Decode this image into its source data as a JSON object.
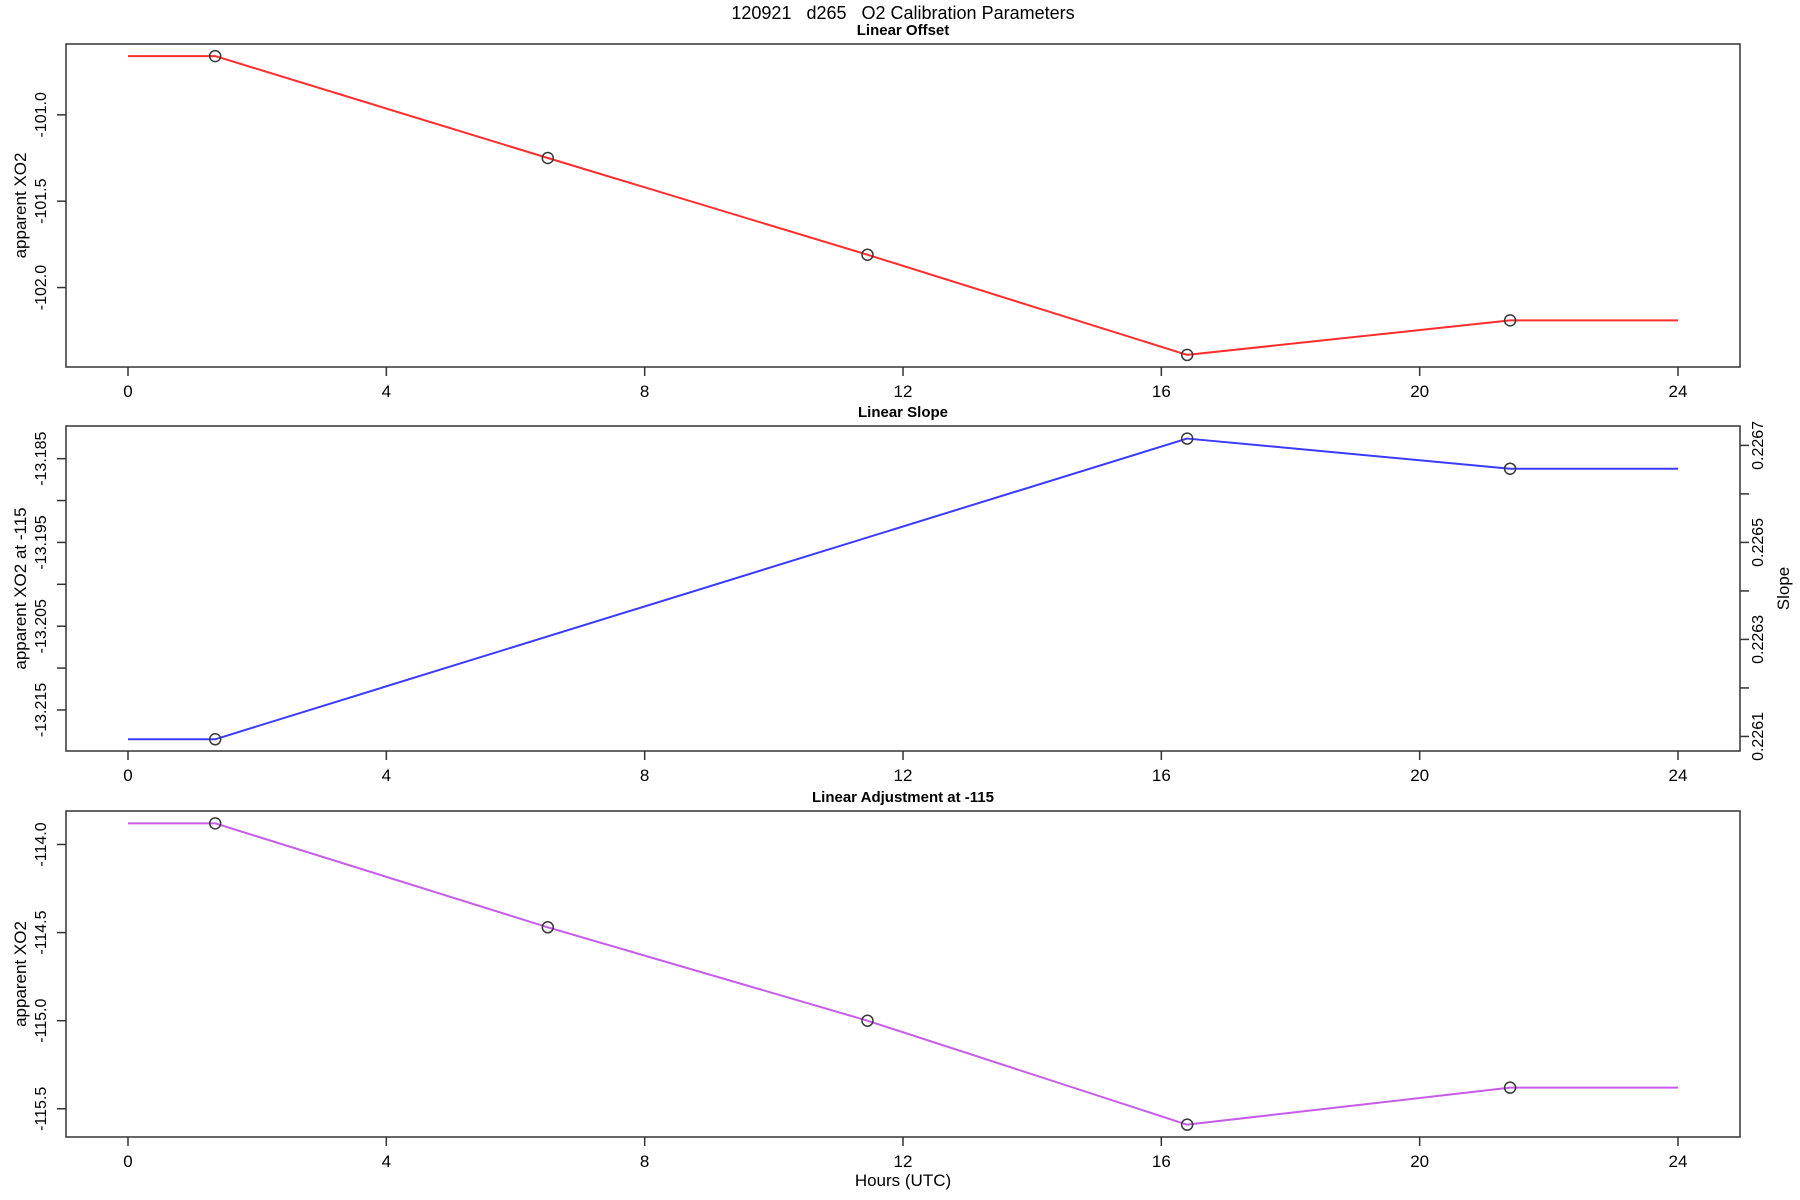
{
  "page_title": "120921   d265   O2 Calibration Parameters",
  "xlabel": "Hours (UTC)",
  "marker_color": "#3a3a3a",
  "axis_color": "#333333",
  "chart_data": [
    {
      "type": "line",
      "title": "Linear Offset",
      "ylabel": "apparent XO2",
      "line_color": "#ff2d2d",
      "x": [
        1.35,
        6.5,
        11.45,
        16.4,
        21.4
      ],
      "y": [
        -100.66,
        -101.25,
        -101.81,
        -102.39,
        -102.19
      ],
      "extend_flat_to": [
        0,
        24
      ],
      "xlim": [
        -0.96,
        24.96
      ],
      "ylim": [
        -102.46,
        -100.59
      ],
      "xticks": [
        0,
        4,
        8,
        12,
        16,
        20,
        24
      ],
      "yticks": [
        {
          "v": -101.0,
          "label": "-101.0"
        },
        {
          "v": -101.5,
          "label": "-101.5"
        },
        {
          "v": -102.0,
          "label": "-102.0"
        }
      ],
      "grid": false,
      "legend": null
    },
    {
      "type": "line",
      "title": "Linear Slope",
      "ylabel": "apparent XO2 at -115",
      "ylabel_right": "Slope",
      "line_color": "#3b3bff",
      "x": [
        1.35,
        16.4,
        21.4
      ],
      "y": [
        -13.2185,
        -13.1826,
        -13.1862
      ],
      "y_right": [
        0.2261,
        0.22671,
        0.22665
      ],
      "extend_flat_to": [
        0,
        24
      ],
      "xlim": [
        -0.96,
        24.96
      ],
      "ylim": [
        -13.2199,
        -13.1811
      ],
      "ylim_right": [
        0.22607,
        0.22674
      ],
      "xticks": [
        0,
        4,
        8,
        12,
        16,
        20,
        24
      ],
      "yticks": [
        {
          "v": -13.185,
          "label": "-13.185"
        },
        {
          "v": -13.19,
          "label": ""
        },
        {
          "v": -13.195,
          "label": "-13.195"
        },
        {
          "v": -13.2,
          "label": ""
        },
        {
          "v": -13.205,
          "label": "-13.205"
        },
        {
          "v": -13.21,
          "label": ""
        },
        {
          "v": -13.215,
          "label": "-13.215"
        }
      ],
      "yticks_right": [
        {
          "v": 0.2267,
          "label": "0.2267"
        },
        {
          "v": 0.2266,
          "label": ""
        },
        {
          "v": 0.2265,
          "label": "0.2265"
        },
        {
          "v": 0.2264,
          "label": ""
        },
        {
          "v": 0.2263,
          "label": "0.2263"
        },
        {
          "v": 0.2262,
          "label": ""
        },
        {
          "v": 0.2261,
          "label": "0.2261"
        }
      ],
      "grid": false,
      "legend": null
    },
    {
      "type": "line",
      "title": "Linear Adjustment at -115",
      "ylabel": "apparent XO2",
      "line_color": "#c75ce8",
      "x": [
        1.35,
        6.5,
        11.45,
        16.4,
        21.4
      ],
      "y": [
        -113.88,
        -114.47,
        -115.0,
        -115.59,
        -115.38
      ],
      "extend_flat_to": [
        0,
        24
      ],
      "xlim": [
        -0.96,
        24.96
      ],
      "ylim": [
        -115.66,
        -113.81
      ],
      "xticks": [
        0,
        4,
        8,
        12,
        16,
        20,
        24
      ],
      "yticks": [
        {
          "v": -114.0,
          "label": "-114.0"
        },
        {
          "v": -114.5,
          "label": "-114.5"
        },
        {
          "v": -115.0,
          "label": "-115.0"
        },
        {
          "v": -115.5,
          "label": "-115.5"
        }
      ],
      "grid": false,
      "legend": null
    }
  ]
}
